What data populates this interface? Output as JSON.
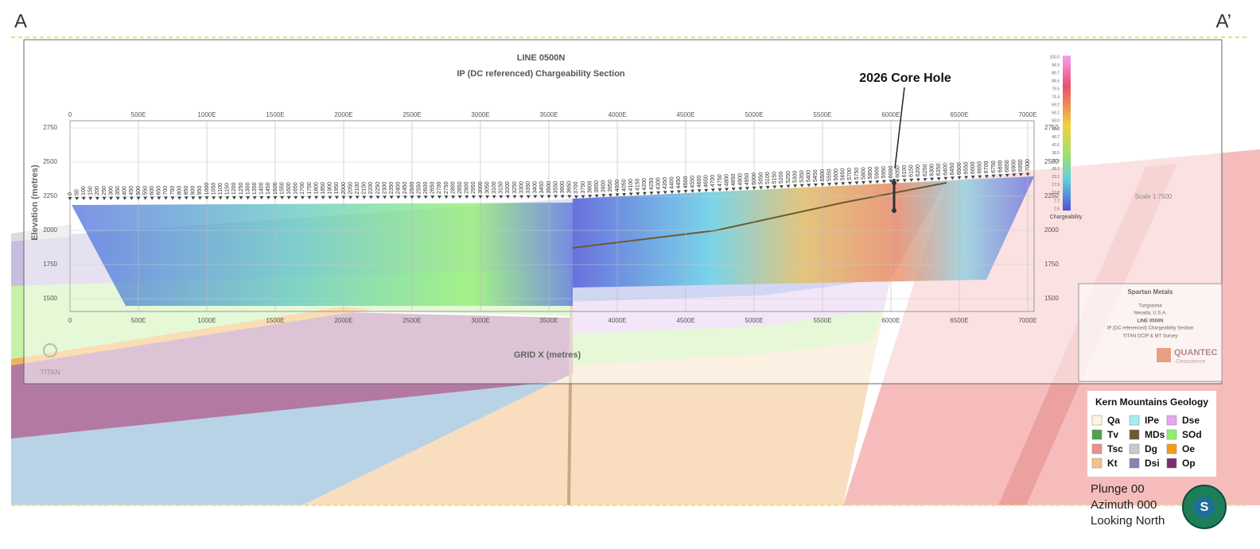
{
  "corners": {
    "left": "A",
    "right": "A’"
  },
  "section": {
    "title": "LINE 0500N",
    "subtitle": "IP (DC referenced) Chargeability Section",
    "y_axis_label": "Elevation (metres)",
    "x_axis_label": "GRID X (metres)",
    "xticks": [
      0,
      {
        "value": 500,
        "label": "500E"
      },
      {
        "value": 1000,
        "label": "1000E"
      },
      {
        "value": 1500,
        "label": "1500E"
      },
      {
        "value": 2000,
        "label": "2000E"
      },
      {
        "value": 2500,
        "label": "2500E"
      },
      {
        "value": 3000,
        "label": "3000E"
      },
      {
        "value": 3500,
        "label": "3500E"
      },
      {
        "value": 4000,
        "label": "4000E"
      },
      {
        "value": 4500,
        "label": "4500E"
      },
      {
        "value": 5000,
        "label": "5000E"
      },
      {
        "value": 5500,
        "label": "5500E"
      },
      {
        "value": 6000,
        "label": "6000E"
      },
      {
        "value": 6500,
        "label": "6500E"
      },
      {
        "value": 7000,
        "label": "7000E"
      }
    ],
    "yticks": [
      1500,
      1750,
      2000,
      2250,
      2500,
      2750
    ],
    "stations": [
      0,
      50,
      100,
      150,
      200,
      250,
      300,
      350,
      400,
      450,
      500,
      550,
      600,
      650,
      700,
      750,
      800,
      850,
      900,
      950,
      1000,
      1050,
      1100,
      1150,
      1200,
      1250,
      1300,
      1350,
      1400,
      1450,
      1500,
      1550,
      1600,
      1650,
      1700,
      1750,
      1800,
      1850,
      1900,
      1950,
      2000,
      2050,
      2100,
      2150,
      2200,
      2250,
      2300,
      2350,
      2400,
      2450,
      2500,
      2550,
      2600,
      2650,
      2700,
      2750,
      2800,
      2850,
      2900,
      2950,
      3000,
      3050,
      3100,
      3150,
      3200,
      3250,
      3300,
      3350,
      3400,
      3450,
      3500,
      3550,
      3600,
      3650,
      3700,
      3750,
      3800,
      3850,
      3900,
      3950,
      4000,
      4050,
      4100,
      4150,
      4200,
      4250,
      4300,
      4350,
      4400,
      4450,
      4500,
      4550,
      4600,
      4650,
      4700,
      4750,
      4800,
      4850,
      4900,
      4950,
      5000,
      5050,
      5100,
      5150,
      5200,
      5250,
      5300,
      5350,
      5400,
      5450,
      5500,
      5550,
      5600,
      5650,
      5700,
      5750,
      5800,
      5850,
      5900,
      5950,
      6000,
      6050,
      6100,
      6150,
      6200,
      6250,
      6300,
      6350,
      6400,
      6450,
      6500,
      6550,
      6600,
      6650,
      6700,
      6750,
      6800,
      6850,
      6900,
      6950,
      7000
    ],
    "core_hole": "2026 Core Hole",
    "logo": "TITAN"
  },
  "colorbar": {
    "label": "Chargeability",
    "values": [
      "100.0",
      "94.9",
      "89.7",
      "84.6",
      "79.5",
      "74.4",
      "69.2",
      "64.1",
      "59.0",
      "53.8",
      "48.7",
      "43.6",
      "38.5",
      "33.3",
      "28.2",
      "23.1",
      "17.9",
      "12.8",
      "7.7",
      "2.6"
    ],
    "scale": "Scale 1:7500"
  },
  "title_block": {
    "company": "Spartan Metals",
    "project": "Tungstonia",
    "location": "Nevada, U.S.A.",
    "line": "LINE 0500N",
    "section": "IP (DC referenced) Chargeability Section",
    "survey": "TITAN DCIP & MT Survey",
    "brand": "QUANTEC",
    "brand_sub": "Geoscience"
  },
  "legend": {
    "title": "Kern Mountains Geology",
    "items": [
      {
        "name": "Qa",
        "color": "#fbf7dc"
      },
      {
        "name": "IPe",
        "color": "#a8ecf2"
      },
      {
        "name": "Dse",
        "color": "#e2a8ef"
      },
      {
        "name": "Tv",
        "color": "#4fa24f"
      },
      {
        "name": "MDs",
        "color": "#6b5a33"
      },
      {
        "name": "SOd",
        "color": "#8ef06b"
      },
      {
        "name": "Tsc",
        "color": "#ee8f8f"
      },
      {
        "name": "Dg",
        "color": "#c9c9c9"
      },
      {
        "name": "Oe",
        "color": "#f39a1a"
      },
      {
        "name": "Kt",
        "color": "#f7c08a"
      },
      {
        "name": "Dsi",
        "color": "#8c7fb5"
      },
      {
        "name": "Op",
        "color": "#7a2f6b"
      }
    ]
  },
  "view": {
    "plunge": "Plunge 00",
    "azimuth": "Azimuth 000",
    "direction": "Looking North",
    "compass": "S"
  }
}
